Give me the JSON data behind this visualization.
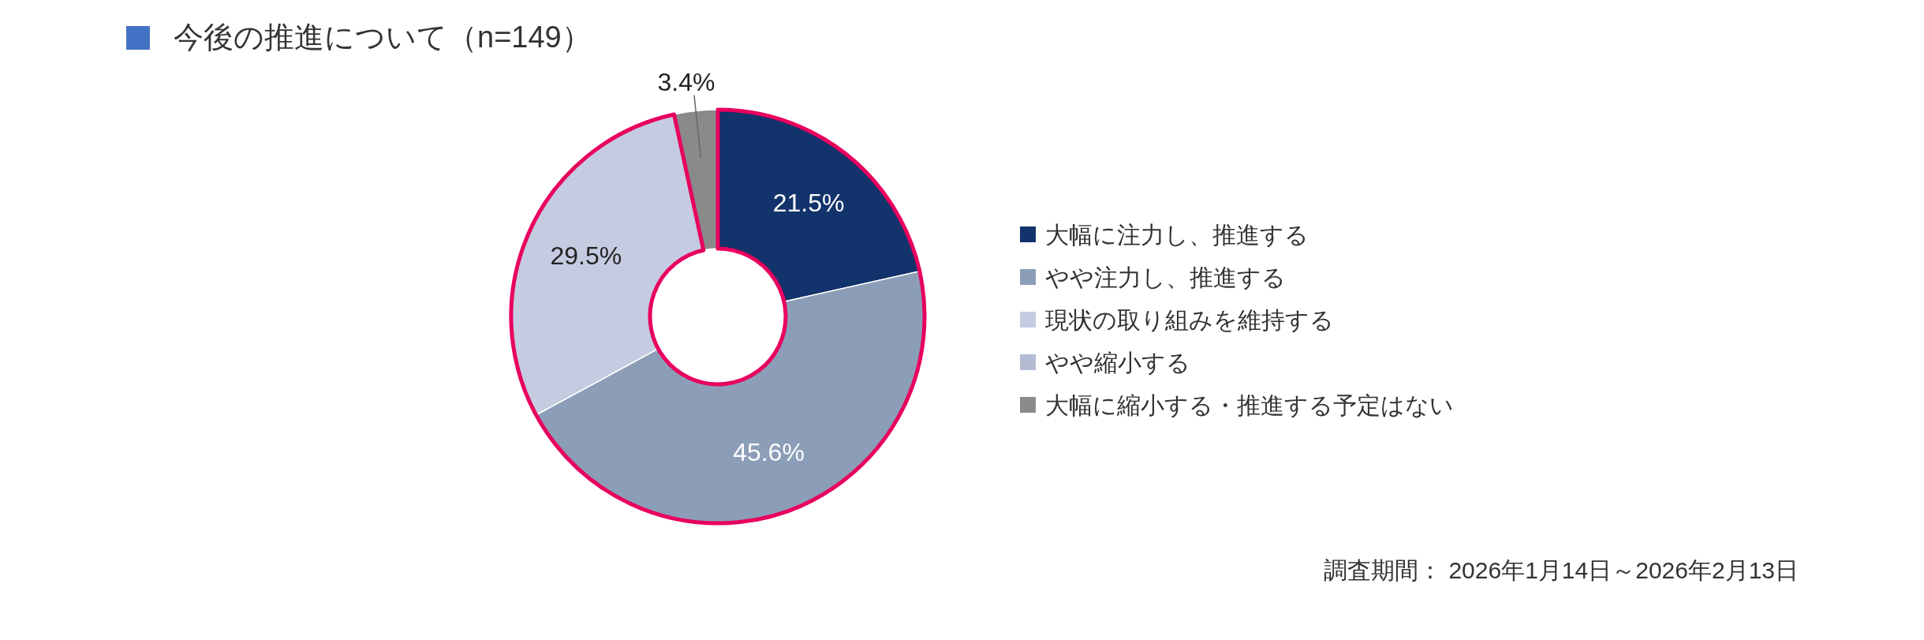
{
  "chart_data": {
    "type": "donut",
    "title": "今後の推進について（n=149）",
    "categories": [
      "大幅に注力し、推進する",
      "やや注力し、推進する",
      "現状の取り組みを維持する",
      "やや縮小する",
      "大幅に縮小する・推進する予定はない"
    ],
    "values": [
      21.5,
      45.6,
      29.5,
      0,
      3.4
    ],
    "value_labels": [
      "21.5%",
      "45.6%",
      "29.5%",
      null,
      "3.4%"
    ],
    "colors": [
      "#12336b",
      "#8c9db8",
      "#c5cbe0",
      "#b4bcd2",
      "#8a8a8a"
    ],
    "legend": "right",
    "annotations": [
      "調査期間： 2026年1月14日～2026年2月13日"
    ]
  }
}
